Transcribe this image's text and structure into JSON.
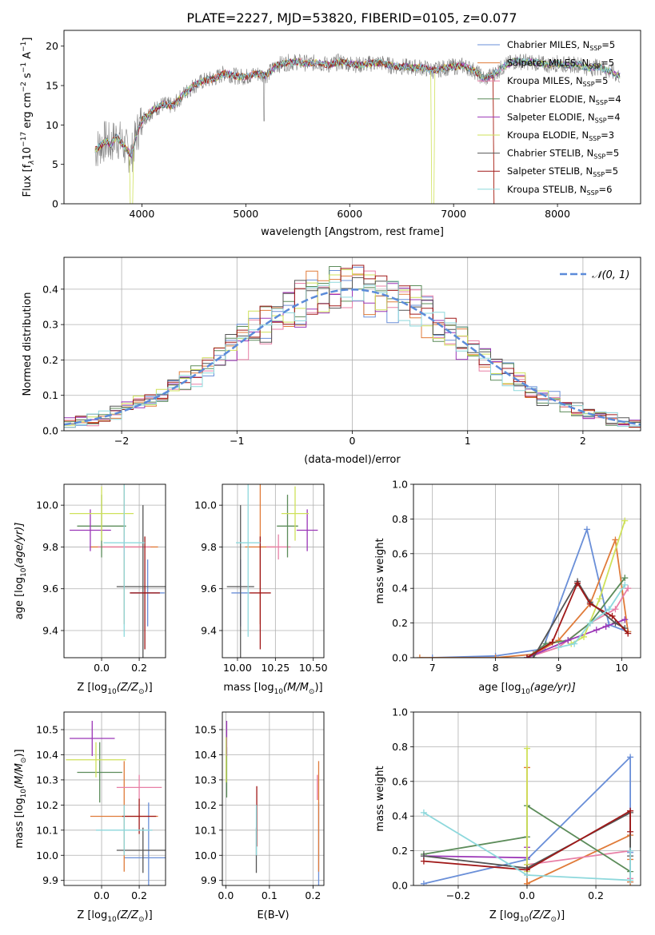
{
  "figure_title": "PLATE=2227, MJD=53820, FIBERID=0105, z=0.077",
  "series": [
    {
      "name": "Chabrier MILES, N$_{SSP}$=5",
      "label_main": "Chabrier MILES, N",
      "label_sub": "SSP",
      "label_tail": "=5",
      "color": "#6a8fd8"
    },
    {
      "name": "Salpeter MILES, N$_{SSP}$=5",
      "label_main": "Salpeter MILES, N",
      "label_sub": "SSP",
      "label_tail": "=5",
      "color": "#e07b39"
    },
    {
      "name": "Kroupa MILES, N$_{SSP}$=5",
      "label_main": "Kroupa MILES, N",
      "label_sub": "SSP",
      "label_tail": "=5",
      "color": "#e87fa6"
    },
    {
      "name": "Chabrier ELODIE, N$_{SSP}$=4",
      "label_main": "Chabrier ELODIE, N",
      "label_sub": "SSP",
      "label_tail": "=4",
      "color": "#5c8c5a"
    },
    {
      "name": "Salpeter ELODIE, N$_{SSP}$=4",
      "label_main": "Salpeter ELODIE, N",
      "label_sub": "SSP",
      "label_tail": "=4",
      "color": "#9b36b7"
    },
    {
      "name": "Kroupa ELODIE, N$_{SSP}$=3",
      "label_main": "Kroupa ELODIE, N",
      "label_sub": "SSP",
      "label_tail": "=3",
      "color": "#cfe15a"
    },
    {
      "name": "Chabrier STELIB, N$_{SSP}$=5",
      "label_main": "Chabrier STELIB, N",
      "label_sub": "SSP",
      "label_tail": "=5",
      "color": "#555555"
    },
    {
      "name": "Salpeter STELIB, N$_{SSP}$=5",
      "label_main": "Salpeter STELIB, N",
      "label_sub": "SSP",
      "label_tail": "=5",
      "color": "#a01818"
    },
    {
      "name": "Kroupa STELIB, N$_{SSP}$=6",
      "label_main": "Kroupa STELIB, N",
      "label_sub": "SSP",
      "label_tail": "=6",
      "color": "#8dd8dc"
    }
  ],
  "chart_data": [
    {
      "id": "spectrum",
      "type": "line",
      "xlabel": "wavelength [Angstrom, rest frame]",
      "ylabel_main": "Flux [f",
      "ylabel_lambda": "λ",
      "ylabel_mid": "10",
      "ylabel_exp1": "−17",
      "ylabel_unit": " erg cm",
      "ylabel_exp2": "−2",
      "ylabel_unit2": " s",
      "ylabel_exp3": "−1",
      "ylabel_unit3": " A",
      "ylabel_exp4": "−1",
      "ylabel_end": "]",
      "xlim": [
        3250,
        8800
      ],
      "ylim": [
        0,
        22
      ],
      "xticks": [
        4000,
        5000,
        6000,
        7000,
        8000
      ],
      "xtick_labels": [
        "4000",
        "5000",
        "6000",
        "7000",
        "8000"
      ],
      "yticks": [
        0,
        5,
        10,
        15,
        20
      ],
      "ytick_labels": [
        "0",
        "5",
        "10",
        "15",
        "20"
      ],
      "grid": false,
      "legend_position": "right",
      "data_x": [
        3550,
        3600,
        3650,
        3700,
        3750,
        3800,
        3850,
        3900,
        3950,
        4000,
        4100,
        4200,
        4300,
        4400,
        4500,
        4600,
        4700,
        4800,
        4900,
        5000,
        5100,
        5200,
        5300,
        5400,
        5500,
        5600,
        5700,
        5800,
        5900,
        6000,
        6100,
        6200,
        6300,
        6400,
        6500,
        6600,
        6700,
        6800,
        6900,
        7000,
        7100,
        7200,
        7300,
        7400,
        7500,
        7600,
        7700,
        7800,
        7900,
        8000,
        8100,
        8200,
        8300,
        8400,
        8500,
        8600
      ],
      "data_y": [
        6.8,
        7.4,
        8.0,
        7.5,
        8.5,
        7.8,
        6.9,
        6.2,
        8.9,
        10.6,
        11.8,
        12.6,
        12.4,
        13.9,
        15.0,
        15.6,
        15.9,
        16.6,
        16.2,
        16.1,
        16.5,
        16.3,
        17.6,
        17.9,
        18.0,
        17.8,
        17.9,
        17.6,
        18.0,
        17.8,
        17.6,
        17.8,
        17.9,
        17.5,
        17.4,
        17.3,
        17.3,
        16.9,
        17.2,
        17.4,
        17.5,
        16.9,
        15.8,
        16.6,
        17.6,
        18.1,
        18.0,
        17.9,
        17.6,
        17.8,
        17.6,
        17.7,
        17.2,
        17.4,
        16.8,
        16.2
      ]
    },
    {
      "id": "residuals",
      "type": "histogram",
      "xlabel": "(data-model)/error",
      "ylabel": "Normed distribution",
      "xlim": [
        -2.5,
        2.5
      ],
      "ylim": [
        0,
        0.49
      ],
      "xticks": [
        -2,
        -1,
        0,
        1,
        2
      ],
      "xtick_labels": [
        "−2",
        "−1",
        "0",
        "1",
        "2"
      ],
      "yticks": [
        0,
        0.1,
        0.2,
        0.3,
        0.4
      ],
      "ytick_labels": [
        "0.0",
        "0.1",
        "0.2",
        "0.3",
        "0.4"
      ],
      "grid": true,
      "bin_width": 0.1,
      "reference_label": "𝒩(0, 1)",
      "reference_color": "#5b8bd9",
      "legend_position": "top-right"
    },
    {
      "id": "age-vs-Z",
      "type": "errorbar",
      "xlabel_main": "Z [log",
      "xlabel_sub": "10",
      "xlabel_tail": "(Z/Z",
      "xlabel_end": ")]",
      "ylabel_main": "age  [log",
      "ylabel_sub": "10",
      "ylabel_tail": "(age/yr)]",
      "xlim": [
        -0.2,
        0.34
      ],
      "ylim": [
        9.27,
        10.1
      ],
      "xticks": [
        0.0,
        0.2
      ],
      "xtick_labels": [
        "0.0",
        "0.2"
      ],
      "yticks": [
        9.4,
        9.6,
        9.8,
        10.0
      ],
      "ytick_labels": [
        "9.4",
        "9.6",
        "9.8",
        "10.0"
      ],
      "grid": true,
      "points": [
        {
          "series": 0,
          "x": 0.245,
          "y": 9.58,
          "xerr": 0.09,
          "yerr": 0.16
        },
        {
          "series": 1,
          "x": 0.12,
          "y": 9.8,
          "xerr": 0.18,
          "yerr": 0.37
        },
        {
          "series": 2,
          "x": 0.12,
          "y": 9.8,
          "xerr": 0.14,
          "yerr": 0.05
        },
        {
          "series": 3,
          "x": 0.0,
          "y": 9.9,
          "xerr": 0.13,
          "yerr": 0.15
        },
        {
          "series": 4,
          "x": -0.06,
          "y": 9.88,
          "xerr": 0.11,
          "yerr": 0.1
        },
        {
          "series": 5,
          "x": 0.0,
          "y": 9.96,
          "xerr": 0.17,
          "yerr": 0.13
        },
        {
          "series": 6,
          "x": 0.22,
          "y": 9.61,
          "xerr": 0.14,
          "yerr": 0.39
        },
        {
          "series": 7,
          "x": 0.23,
          "y": 9.58,
          "xerr": 0.08,
          "yerr": 0.27
        },
        {
          "series": 8,
          "x": 0.12,
          "y": 9.82,
          "xerr": 0.11,
          "yerr": 0.45
        }
      ]
    },
    {
      "id": "age-vs-mass",
      "type": "errorbar",
      "xlabel_main": "mass [log",
      "xlabel_sub": "10",
      "xlabel_tail": "(M/M",
      "xlabel_end": ")]",
      "xlim": [
        9.9,
        10.57
      ],
      "ylim": [
        9.27,
        10.1
      ],
      "xticks": [
        10.0,
        10.25,
        10.5
      ],
      "xtick_labels": [
        "10.00",
        "10.25",
        "10.50"
      ],
      "yticks": [
        9.4,
        9.6,
        9.8,
        10.0
      ],
      "ytick_labels": [
        "9.4",
        "9.6",
        "9.8",
        "10.0"
      ],
      "grid": true,
      "points": [
        {
          "series": 0,
          "x": 10.02,
          "y": 9.58,
          "xerr": 0.06,
          "yerr": 0.16
        },
        {
          "series": 1,
          "x": 10.15,
          "y": 9.8,
          "xerr": 0.1,
          "yerr": 0.37
        },
        {
          "series": 2,
          "x": 10.27,
          "y": 9.8,
          "xerr": 0.08,
          "yerr": 0.06
        },
        {
          "series": 3,
          "x": 10.33,
          "y": 9.9,
          "xerr": 0.07,
          "yerr": 0.15
        },
        {
          "series": 4,
          "x": 10.46,
          "y": 9.88,
          "xerr": 0.07,
          "yerr": 0.1
        },
        {
          "series": 5,
          "x": 10.38,
          "y": 9.96,
          "xerr": 0.09,
          "yerr": 0.13
        },
        {
          "series": 6,
          "x": 10.02,
          "y": 9.61,
          "xerr": 0.09,
          "yerr": 0.39
        },
        {
          "series": 7,
          "x": 10.15,
          "y": 9.58,
          "xerr": 0.07,
          "yerr": 0.27
        },
        {
          "series": 8,
          "x": 10.07,
          "y": 9.82,
          "xerr": 0.08,
          "yerr": 0.45
        }
      ]
    },
    {
      "id": "mass-weight-vs-age",
      "type": "line",
      "xlabel_main": "age  [log",
      "xlabel_sub": "10",
      "xlabel_tail": "(age/yr)]",
      "ylabel": "mass weight",
      "xlim": [
        6.7,
        10.3
      ],
      "ylim": [
        0,
        1.0
      ],
      "xticks": [
        7,
        8,
        9,
        10
      ],
      "xtick_labels": [
        "7",
        "8",
        "9",
        "10"
      ],
      "yticks": [
        0,
        0.2,
        0.4,
        0.6,
        0.8,
        1.0
      ],
      "ytick_labels": [
        "0.0",
        "0.2",
        "0.4",
        "0.6",
        "0.8",
        "1.0"
      ],
      "grid": true,
      "series_points": [
        {
          "series": 0,
          "x": [
            7.0,
            8.0,
            8.75,
            9.45,
            9.8,
            10.1
          ],
          "y": [
            0.0,
            0.01,
            0.05,
            0.74,
            0.19,
            0.15
          ]
        },
        {
          "series": 1,
          "x": [
            6.8,
            8.0,
            8.6,
            9.0,
            9.5,
            9.9,
            10.1
          ],
          "y": [
            0.0,
            0.0,
            0.02,
            0.1,
            0.31,
            0.68,
            0.15
          ]
        },
        {
          "series": 2,
          "x": [
            8.5,
            9.0,
            9.5,
            9.9,
            10.1
          ],
          "y": [
            0.0,
            0.06,
            0.2,
            0.28,
            0.4
          ]
        },
        {
          "series": 3,
          "x": [
            8.5,
            8.8,
            9.15,
            9.5,
            10.05
          ],
          "y": [
            0.0,
            0.08,
            0.1,
            0.2,
            0.46
          ]
        },
        {
          "series": 4,
          "x": [
            8.5,
            9.15,
            9.6,
            9.75,
            10.05
          ],
          "y": [
            0.0,
            0.1,
            0.16,
            0.18,
            0.22
          ]
        },
        {
          "series": 5,
          "x": [
            9.2,
            9.4,
            9.65,
            10.05
          ],
          "y": [
            0.08,
            0.12,
            0.34,
            0.79
          ]
        },
        {
          "series": 6,
          "x": [
            8.6,
            9.3,
            9.5,
            9.9,
            10.05
          ],
          "y": [
            0.0,
            0.44,
            0.32,
            0.2,
            0.17
          ]
        },
        {
          "series": 7,
          "x": [
            8.5,
            8.9,
            9.3,
            9.5,
            9.85,
            10.1
          ],
          "y": [
            0.0,
            0.09,
            0.43,
            0.31,
            0.24,
            0.14
          ]
        },
        {
          "series": 8,
          "x": [
            9.0,
            9.25,
            9.5,
            9.8,
            10.05
          ],
          "y": [
            0.06,
            0.08,
            0.2,
            0.28,
            0.42
          ]
        }
      ]
    },
    {
      "id": "mass-vs-Z",
      "type": "errorbar",
      "xlabel_main": "Z [log",
      "xlabel_sub": "10",
      "xlabel_tail": "(Z/Z",
      "xlabel_end": ")]",
      "ylabel_main": "mass [log",
      "ylabel_sub": "10",
      "ylabel_tail": "(M/M",
      "ylabel_end": ")]",
      "xlim": [
        -0.2,
        0.34
      ],
      "ylim": [
        9.88,
        10.57
      ],
      "xticks": [
        0.0,
        0.2
      ],
      "xtick_labels": [
        "0.0",
        "0.2"
      ],
      "yticks": [
        9.9,
        10.0,
        10.1,
        10.2,
        10.3,
        10.4,
        10.5
      ],
      "ytick_labels": [
        "9.9",
        "10.0",
        "10.1",
        "10.2",
        "10.3",
        "10.4",
        "10.5"
      ],
      "grid": true,
      "points": [
        {
          "series": 0,
          "x": 0.25,
          "y": 9.99,
          "xerr": 0.13,
          "yerr": 0.22
        },
        {
          "series": 1,
          "x": 0.12,
          "y": 10.155,
          "xerr": 0.18,
          "yerr": 0.22
        },
        {
          "series": 2,
          "x": 0.2,
          "y": 10.27,
          "xerr": 0.12,
          "yerr": 0.05
        },
        {
          "series": 3,
          "x": -0.01,
          "y": 10.33,
          "xerr": 0.12,
          "yerr": 0.12
        },
        {
          "series": 4,
          "x": -0.05,
          "y": 10.465,
          "xerr": 0.12,
          "yerr": 0.07
        },
        {
          "series": 5,
          "x": -0.03,
          "y": 10.38,
          "xerr": 0.16,
          "yerr": 0.07
        },
        {
          "series": 6,
          "x": 0.22,
          "y": 10.02,
          "xerr": 0.14,
          "yerr": 0.09
        },
        {
          "series": 7,
          "x": 0.2,
          "y": 10.155,
          "xerr": 0.09,
          "yerr": 0.07
        },
        {
          "series": 8,
          "x": 0.12,
          "y": 10.1,
          "xerr": 0.15,
          "yerr": 0.1
        }
      ]
    },
    {
      "id": "mass-vs-EBV",
      "type": "errorbar",
      "xlabel": "E(B-V)",
      "xlim": [
        -0.008,
        0.225
      ],
      "ylim": [
        9.88,
        10.57
      ],
      "xticks": [
        0.0,
        0.1,
        0.2
      ],
      "xtick_labels": [
        "0.0",
        "0.1",
        "0.2"
      ],
      "yticks": [
        9.9,
        10.0,
        10.1,
        10.2,
        10.3,
        10.4,
        10.5
      ],
      "ytick_labels": [
        "9.9",
        "10.0",
        "10.1",
        "10.2",
        "10.3",
        "10.4",
        "10.5"
      ],
      "grid": true,
      "points": [
        {
          "series": 0,
          "x": 0.213,
          "y": 9.99,
          "xerr": 0.0,
          "yerr": 0.22
        },
        {
          "series": 1,
          "x": 0.213,
          "y": 10.155,
          "xerr": 0.0,
          "yerr": 0.22
        },
        {
          "series": 2,
          "x": 0.21,
          "y": 10.27,
          "xerr": 0.0,
          "yerr": 0.05
        },
        {
          "series": 3,
          "x": 0.002,
          "y": 10.33,
          "xerr": 0.0,
          "yerr": 0.1
        },
        {
          "series": 4,
          "x": 0.002,
          "y": 10.465,
          "xerr": 0.0,
          "yerr": 0.07
        },
        {
          "series": 5,
          "x": 0.001,
          "y": 10.38,
          "xerr": 0.0,
          "yerr": 0.09
        },
        {
          "series": 6,
          "x": 0.07,
          "y": 10.02,
          "xerr": 0.0,
          "yerr": 0.09
        },
        {
          "series": 7,
          "x": 0.071,
          "y": 10.155,
          "xerr": 0.0,
          "yerr": 0.12
        },
        {
          "series": 8,
          "x": 0.07,
          "y": 10.1,
          "xerr": 0.0,
          "yerr": 0.1
        }
      ]
    },
    {
      "id": "mass-weight-vs-Z",
      "type": "line",
      "xlabel_main": "Z [log",
      "xlabel_sub": "10",
      "xlabel_tail": "(Z/Z",
      "xlabel_end": ")]",
      "ylabel": "mass weight",
      "xlim": [
        -0.33,
        0.33
      ],
      "ylim": [
        0,
        1.0
      ],
      "xticks": [
        -0.2,
        0.0,
        0.2
      ],
      "xtick_labels": [
        "−0.2",
        "0.0",
        "0.2"
      ],
      "yticks": [
        0,
        0.2,
        0.4,
        0.6,
        0.8,
        1.0
      ],
      "ytick_labels": [
        "0.0",
        "0.2",
        "0.4",
        "0.6",
        "0.8",
        "1.0"
      ],
      "grid": true,
      "series_points": [
        {
          "series": 0,
          "x": [
            -0.3,
            0.0,
            0.3,
            0.3,
            0.3
          ],
          "y": [
            0.01,
            0.15,
            0.74,
            0.19,
            0.02
          ]
        },
        {
          "series": 1,
          "x": [
            0.0,
            0.0,
            0.3,
            0.3,
            0.3
          ],
          "y": [
            0.68,
            0.01,
            0.29,
            0.15,
            0.02
          ]
        },
        {
          "series": 2,
          "x": [
            0.0,
            0.0,
            0.3,
            0.3
          ],
          "y": [
            0.06,
            0.12,
            0.2,
            0.04
          ]
        },
        {
          "series": 3,
          "x": [
            -0.3,
            0.0,
            0.0,
            0.3
          ],
          "y": [
            0.18,
            0.28,
            0.46,
            0.08
          ]
        },
        {
          "series": 4,
          "x": [
            -0.3,
            0.0,
            0.0,
            0.0
          ],
          "y": [
            0.17,
            0.16,
            0.22,
            0.1
          ]
        },
        {
          "series": 5,
          "x": [
            0.0,
            0.0,
            0.0
          ],
          "y": [
            0.79,
            0.08,
            0.12
          ]
        },
        {
          "series": 6,
          "x": [
            -0.3,
            0.0,
            0.3,
            0.3
          ],
          "y": [
            0.17,
            0.1,
            0.42,
            0.17
          ]
        },
        {
          "series": 7,
          "x": [
            -0.3,
            0.0,
            0.3,
            0.3
          ],
          "y": [
            0.14,
            0.09,
            0.43,
            0.31
          ]
        },
        {
          "series": 8,
          "x": [
            -0.3,
            0.0,
            0.3,
            0.3
          ],
          "y": [
            0.42,
            0.06,
            0.03,
            0.2
          ]
        }
      ]
    }
  ]
}
